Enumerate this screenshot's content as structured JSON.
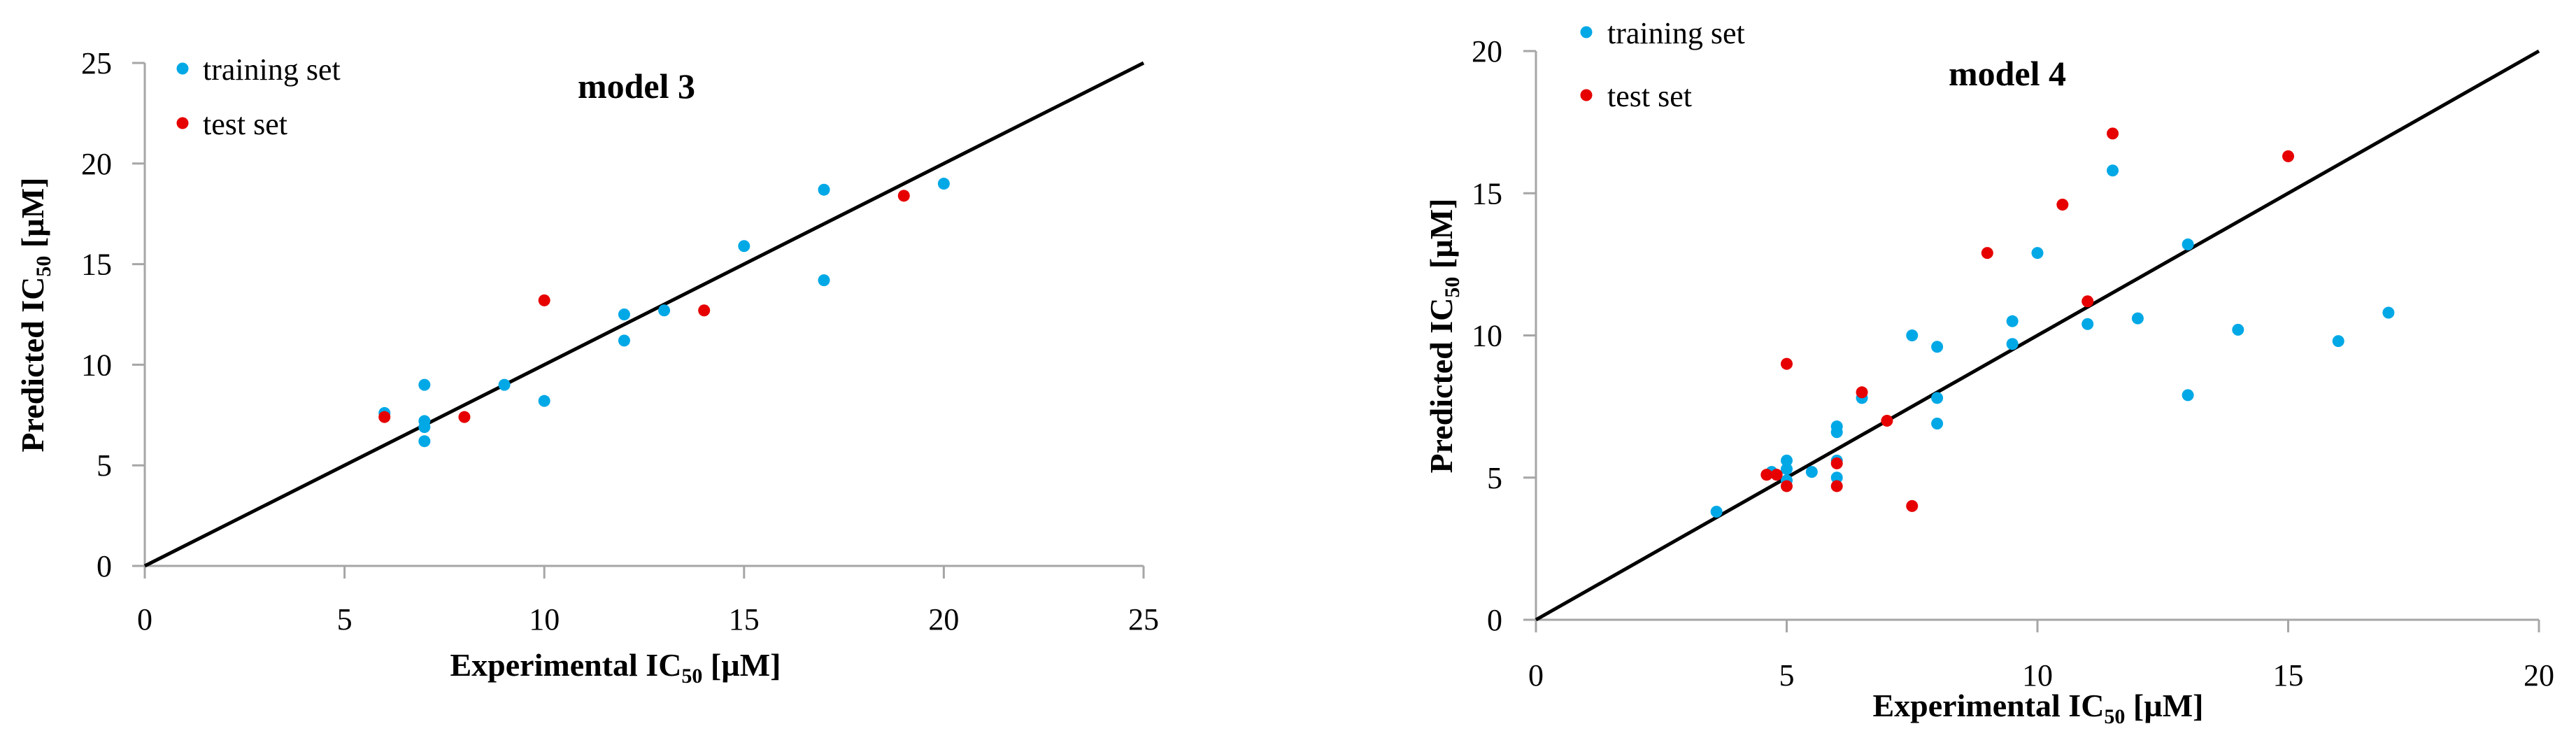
{
  "colors": {
    "training": "#00a8e6",
    "test": "#e60000",
    "axis": "#a6a6a6",
    "line": "#000000"
  },
  "chart_data": [
    {
      "type": "scatter",
      "title": "model 3",
      "xlabel": {
        "main": "Experimental IC",
        "sub": "50",
        "unit": " [µM]"
      },
      "ylabel": {
        "main": "Predicted IC",
        "sub": "50",
        "unit": " [µM]"
      },
      "xlim": [
        0,
        25
      ],
      "ylim": [
        0,
        25
      ],
      "xticks": [
        0,
        5,
        10,
        15,
        20,
        25
      ],
      "yticks": [
        0,
        5,
        10,
        15,
        20,
        25
      ],
      "legend": "top-left",
      "reference_line": [
        [
          0,
          0
        ],
        [
          25,
          25
        ]
      ],
      "series": [
        {
          "name": "training set",
          "color": "#00a8e6",
          "points": [
            [
              6,
              7.6
            ],
            [
              7,
              9.0
            ],
            [
              7,
              7.2
            ],
            [
              7,
              6.9
            ],
            [
              7,
              6.2
            ],
            [
              9,
              9.0
            ],
            [
              10,
              8.2
            ],
            [
              12,
              12.5
            ],
            [
              12,
              11.2
            ],
            [
              13,
              12.7
            ],
            [
              15,
              15.9
            ],
            [
              17,
              18.7
            ],
            [
              17,
              14.2
            ],
            [
              20,
              19.0
            ]
          ]
        },
        {
          "name": "test set",
          "color": "#e60000",
          "points": [
            [
              6,
              7.4
            ],
            [
              8,
              7.4
            ],
            [
              10,
              13.2
            ],
            [
              14,
              12.7
            ],
            [
              19,
              18.4
            ]
          ]
        }
      ]
    },
    {
      "type": "scatter",
      "title": "model 4",
      "xlabel": {
        "main": "Experimental IC",
        "sub": "50",
        "unit": " [µM]"
      },
      "ylabel": {
        "main": "Predicted IC",
        "sub": "50",
        "unit": " [µM]"
      },
      "xlim": [
        0,
        20
      ],
      "ylim": [
        0,
        20
      ],
      "xticks": [
        0,
        5,
        10,
        15,
        20
      ],
      "yticks": [
        0,
        5,
        10,
        15,
        20
      ],
      "legend": "top-left",
      "reference_line": [
        [
          0,
          0
        ],
        [
          20,
          20
        ]
      ],
      "series": [
        {
          "name": "training set",
          "color": "#00a8e6",
          "points": [
            [
              3.6,
              3.8
            ],
            [
              4.7,
              5.2
            ],
            [
              5,
              5.6
            ],
            [
              5,
              5.3
            ],
            [
              5,
              4.9
            ],
            [
              5.5,
              5.2
            ],
            [
              6,
              6.8
            ],
            [
              6,
              6.6
            ],
            [
              6,
              5.6
            ],
            [
              6,
              5.0
            ],
            [
              6.5,
              7.8
            ],
            [
              7.5,
              10.0
            ],
            [
              8,
              9.6
            ],
            [
              8,
              7.8
            ],
            [
              8,
              6.9
            ],
            [
              9.5,
              10.5
            ],
            [
              9.5,
              9.7
            ],
            [
              10,
              12.9
            ],
            [
              11,
              10.4
            ],
            [
              11.5,
              15.8
            ],
            [
              12,
              10.6
            ],
            [
              13,
              13.2
            ],
            [
              13,
              7.9
            ],
            [
              14,
              10.2
            ],
            [
              16,
              9.8
            ],
            [
              17,
              10.8
            ]
          ]
        },
        {
          "name": "test set",
          "color": "#e60000",
          "points": [
            [
              4.6,
              5.1
            ],
            [
              4.8,
              5.1
            ],
            [
              5,
              4.7
            ],
            [
              5,
              9.0
            ],
            [
              6,
              5.5
            ],
            [
              6,
              4.7
            ],
            [
              6.5,
              8.0
            ],
            [
              7,
              7.0
            ],
            [
              7.5,
              4.0
            ],
            [
              9,
              12.9
            ],
            [
              10.5,
              14.6
            ],
            [
              11,
              11.2
            ],
            [
              11.5,
              17.1
            ],
            [
              15,
              16.3
            ]
          ]
        }
      ]
    }
  ]
}
